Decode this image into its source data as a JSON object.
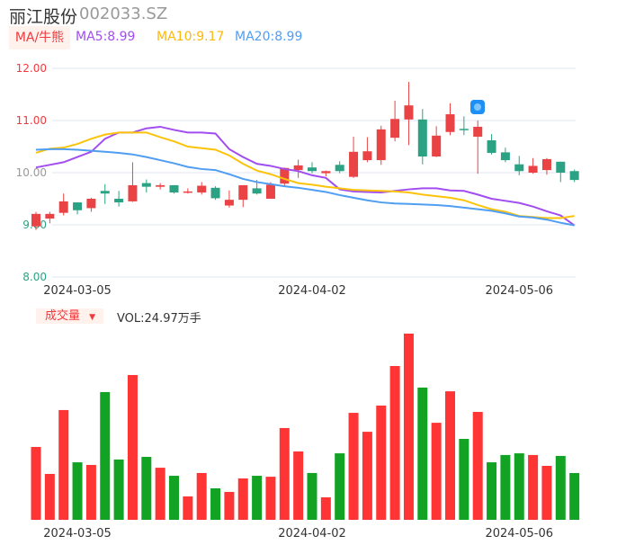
{
  "header": {
    "name": "丽江股份",
    "code": "002033.SZ"
  },
  "legend": {
    "ma_button": "MA/牛熊",
    "ma5": "MA5:8.99",
    "ma10": "MA10:9.17",
    "ma20": "MA20:8.99"
  },
  "colors": {
    "up": "#e94345",
    "down": "#2ba283",
    "vol_up": "#ff3434",
    "vol_down": "#12a325",
    "ma5": "#a24df0",
    "ma10": "#fcc30b",
    "ma20": "#4f9ef2",
    "grid": "#dfe4f0"
  },
  "volume_panel": {
    "button": "成交量",
    "arrow": "▼",
    "label": "VOL:24.97万手"
  },
  "chart_data": {
    "type": "candlestick",
    "y_ticks": [
      "12.00",
      "11.00",
      "10.00",
      "9.00",
      "8.00"
    ],
    "ylim": [
      8,
      12
    ],
    "x_ticks": [
      {
        "index": 3,
        "label": "2024-03-05"
      },
      {
        "index": 20,
        "label": "2024-04-02"
      },
      {
        "index": 35,
        "label": "2024-05-06"
      }
    ],
    "ohlc": [
      [
        8.97,
        9.21,
        9.25,
        8.9
      ],
      [
        9.12,
        9.21,
        9.25,
        9.03
      ],
      [
        9.23,
        9.45,
        9.6,
        9.18
      ],
      [
        9.43,
        9.28,
        9.43,
        9.2
      ],
      [
        9.32,
        9.5,
        9.52,
        9.25
      ],
      [
        9.65,
        9.6,
        9.78,
        9.4
      ],
      [
        9.5,
        9.43,
        9.65,
        9.35
      ],
      [
        9.45,
        9.76,
        10.2,
        9.44
      ],
      [
        9.8,
        9.73,
        9.87,
        9.62
      ],
      [
        9.73,
        9.76,
        9.8,
        9.68
      ],
      [
        9.76,
        9.62,
        9.76,
        9.6
      ],
      [
        9.62,
        9.64,
        9.7,
        9.6
      ],
      [
        9.62,
        9.75,
        9.82,
        9.58
      ],
      [
        9.71,
        9.51,
        9.74,
        9.48
      ],
      [
        9.37,
        9.48,
        9.66,
        9.33
      ],
      [
        9.48,
        9.76,
        9.76,
        9.34
      ],
      [
        9.7,
        9.6,
        9.86,
        9.58
      ],
      [
        9.5,
        9.77,
        9.82,
        9.5
      ],
      [
        9.79,
        10.09,
        10.1,
        9.73
      ],
      [
        10.05,
        10.14,
        10.25,
        9.9
      ],
      [
        10.1,
        10.03,
        10.2,
        9.99
      ],
      [
        9.99,
        10.03,
        10.04,
        9.93
      ],
      [
        10.15,
        10.03,
        10.22,
        9.99
      ],
      [
        9.92,
        10.4,
        10.69,
        9.9
      ],
      [
        10.24,
        10.41,
        10.68,
        10.2
      ],
      [
        10.24,
        10.83,
        10.9,
        10.15
      ],
      [
        10.67,
        11.03,
        11.38,
        10.6
      ],
      [
        11.02,
        11.29,
        11.74,
        10.53
      ],
      [
        11.02,
        10.31,
        11.22,
        10.16
      ],
      [
        10.31,
        10.71,
        10.89,
        10.3
      ],
      [
        10.78,
        11.12,
        11.33,
        10.72
      ],
      [
        10.84,
        10.82,
        11.08,
        10.72
      ],
      [
        10.69,
        10.88,
        11.0,
        9.98
      ],
      [
        10.62,
        10.38,
        10.74,
        10.35
      ],
      [
        10.39,
        10.24,
        10.48,
        10.2
      ],
      [
        10.16,
        10.03,
        10.32,
        9.95
      ],
      [
        10.0,
        10.13,
        10.28,
        9.98
      ],
      [
        10.05,
        10.26,
        10.28,
        9.96
      ],
      [
        10.21,
        10.0,
        10.21,
        9.82
      ],
      [
        10.03,
        9.86,
        10.06,
        9.82
      ]
    ],
    "ma5": [
      10.1,
      10.15,
      10.2,
      10.3,
      10.4,
      10.65,
      10.77,
      10.77,
      10.85,
      10.88,
      10.82,
      10.77,
      10.77,
      10.75,
      10.45,
      10.3,
      10.17,
      10.13,
      10.07,
      10.03,
      9.95,
      9.9,
      9.68,
      9.64,
      9.63,
      9.62,
      9.65,
      9.68,
      9.7,
      9.7,
      9.66,
      9.65,
      9.58,
      9.5,
      9.46,
      9.42,
      9.35,
      9.26,
      9.18,
      8.99
    ],
    "ma10": [
      10.38,
      10.46,
      10.48,
      10.55,
      10.65,
      10.73,
      10.77,
      10.77,
      10.77,
      10.68,
      10.6,
      10.5,
      10.47,
      10.44,
      10.33,
      10.17,
      10.04,
      9.97,
      9.88,
      9.8,
      9.77,
      9.73,
      9.7,
      9.67,
      9.66,
      9.65,
      9.64,
      9.62,
      9.58,
      9.55,
      9.52,
      9.47,
      9.38,
      9.3,
      9.25,
      9.17,
      9.15,
      9.13,
      9.13,
      9.17
    ],
    "ma20": [
      10.44,
      10.45,
      10.45,
      10.44,
      10.42,
      10.4,
      10.38,
      10.35,
      10.3,
      10.24,
      10.18,
      10.11,
      10.07,
      10.05,
      9.97,
      9.88,
      9.82,
      9.78,
      9.74,
      9.71,
      9.67,
      9.63,
      9.57,
      9.52,
      9.47,
      9.43,
      9.41,
      9.4,
      9.39,
      9.38,
      9.36,
      9.33,
      9.3,
      9.27,
      9.22,
      9.16,
      9.14,
      9.1,
      9.04,
      8.99
    ],
    "volume_unit": "万手",
    "volume": [
      38.9,
      24.5,
      58.6,
      30.7,
      29.3,
      68.2,
      32.2,
      77.3,
      33.6,
      27.8,
      23.5,
      12.5,
      25.0,
      16.8,
      14.9,
      22.1,
      23.5,
      23.0,
      49.0,
      36.5,
      25.0,
      12.0,
      35.5,
      57.1,
      47.0,
      61.0,
      82.1,
      99.4,
      70.6,
      51.8,
      68.6,
      43.2,
      57.6,
      30.7,
      34.6,
      35.5,
      34.6,
      28.8,
      34.1,
      24.97
    ]
  }
}
